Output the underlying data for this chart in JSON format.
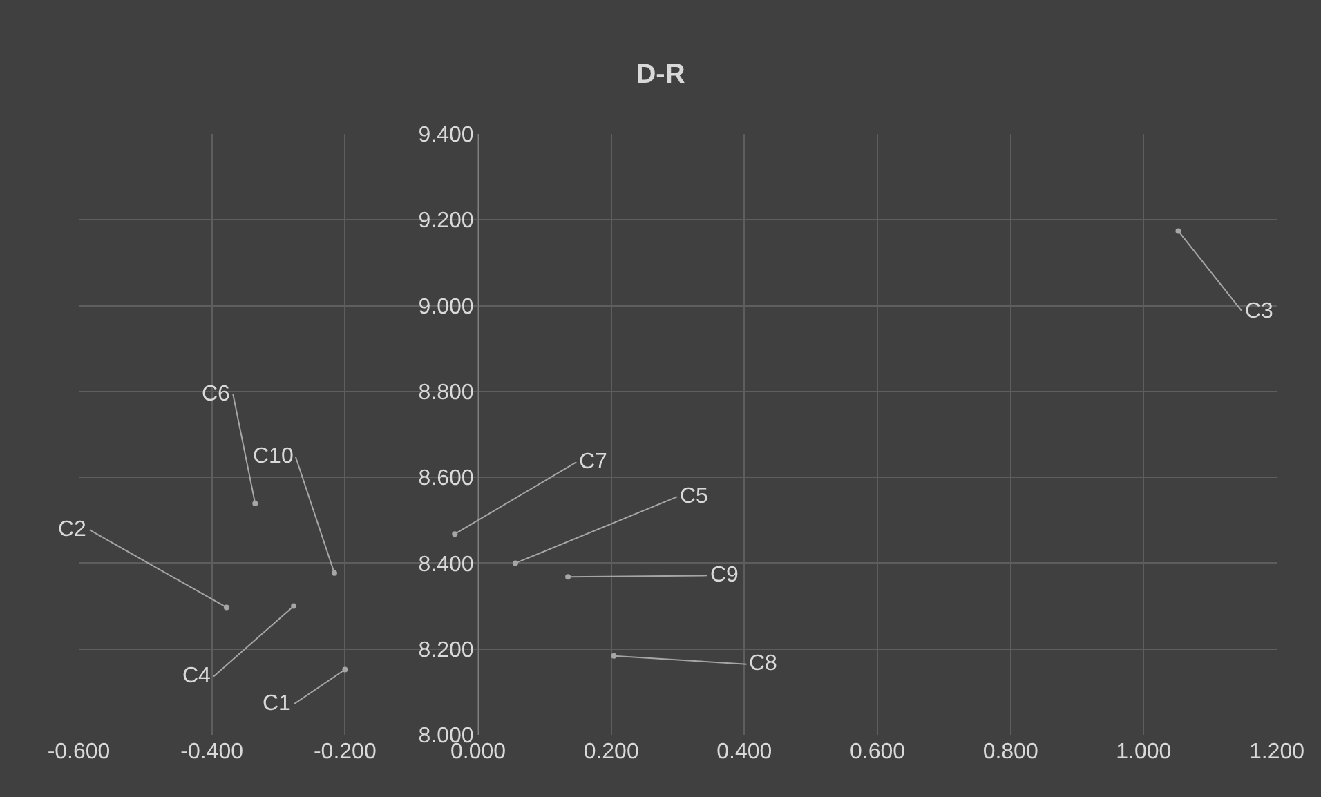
{
  "chart_data": {
    "type": "scatter",
    "title": "D-R",
    "x": [
      -0.2,
      -0.378,
      1.052,
      -0.277,
      0.056,
      -0.335,
      -0.035,
      0.204,
      0.135,
      -0.216
    ],
    "series": [
      {
        "color": "#a6a6a6",
        "values": [
          8.152,
          8.297,
          9.174,
          8.3,
          8.4,
          8.539,
          8.468,
          8.184,
          8.368,
          8.377
        ],
        "value_labels": [
          "C1",
          "C2",
          "C3",
          "C4",
          "C5",
          "C6",
          "C7",
          "C8",
          "C9",
          "C10"
        ]
      }
    ],
    "xlim": [
      -0.6,
      1.2
    ],
    "xticks": [
      {
        "value": -0.6,
        "label": "-0.600"
      },
      {
        "value": -0.4,
        "label": "-0.400"
      },
      {
        "value": -0.2,
        "label": "-0.200"
      },
      {
        "value": 0,
        "label": "0.000"
      },
      {
        "value": 0.2,
        "label": "0.200"
      },
      {
        "value": 0.4,
        "label": "0.400"
      },
      {
        "value": 0.6,
        "label": "0.600"
      },
      {
        "value": 0.8,
        "label": "0.800"
      },
      {
        "value": 1.0,
        "label": "1.000"
      },
      {
        "value": 1.2,
        "label": "1.200"
      }
    ],
    "ylim": [
      8.0,
      9.4
    ],
    "yticks": [
      {
        "value": 8.0,
        "label": "8.000"
      },
      {
        "value": 8.2,
        "label": "8.200"
      },
      {
        "value": 8.4,
        "label": "8.400"
      },
      {
        "value": 8.6,
        "label": "8.600"
      },
      {
        "value": 8.8,
        "label": "8.800"
      },
      {
        "value": 9.0,
        "label": "9.000"
      },
      {
        "value": 9.2,
        "label": "9.200"
      },
      {
        "value": 9.4,
        "label": "9.400"
      }
    ],
    "grid": true,
    "marker": "circle"
  }
}
